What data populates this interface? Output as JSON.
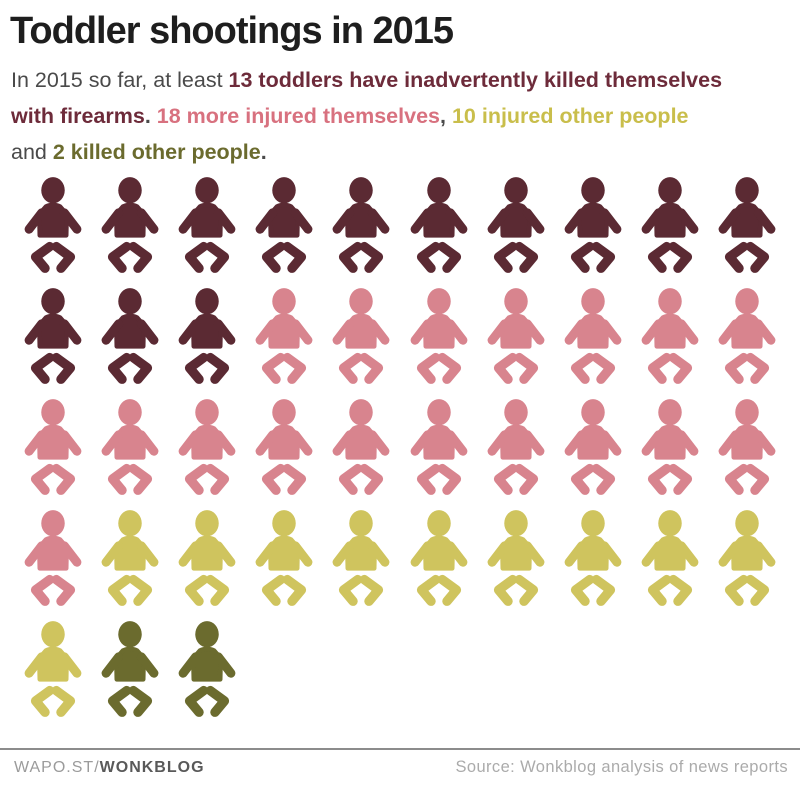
{
  "title": "Toddler shootings in 2015",
  "subtitle_lines": [
    [
      {
        "text": "In 2015 so far, at least ",
        "style": "plain"
      },
      {
        "text": "13 toddlers have inadvertently killed themselves",
        "style": "killed_self"
      }
    ],
    [
      {
        "text": "with firearms",
        "style": "killed_self"
      },
      {
        "text": ". ",
        "style": "punct"
      },
      {
        "text": "18 more injured themselves",
        "style": "injured_self"
      },
      {
        "text": ", ",
        "style": "punct"
      },
      {
        "text": "10 injured other people",
        "style": "injured_other"
      }
    ],
    [
      {
        "text": "and ",
        "style": "plain"
      },
      {
        "text": "2 killed other people",
        "style": "killed_other"
      },
      {
        "text": ".",
        "style": "punct"
      }
    ]
  ],
  "chart_data": {
    "type": "pictogram",
    "title": "Toddler shootings in 2015",
    "unit": "1 icon = 1 toddler",
    "icon": "baby",
    "grid_columns": 10,
    "total": 43,
    "categories": [
      "Killed themselves",
      "Injured themselves",
      "Injured other people",
      "Killed other people"
    ],
    "category_keys": [
      "killed-self",
      "injured-self",
      "injured-other",
      "killed-other"
    ],
    "values": [
      13,
      18,
      10,
      2
    ],
    "colors": [
      "#5b2a33",
      "#d8848e",
      "#cfc45e",
      "#6b6b2e"
    ]
  },
  "footer": {
    "brand_prefix": "WAPO.ST/",
    "brand_bold": "WONKBLOG",
    "source": "Source: Wonkblog analysis of news reports"
  },
  "colors": {
    "title_color": "#1e1e1e",
    "text_gray": "#4a4a4a",
    "killed_self_text": "#6d2b3a",
    "injured_self_text": "#d8717f",
    "injured_other_text": "#c9be4b",
    "killed_other_text": "#6b6b2e",
    "brand_prefix_color": "#9b9b9b",
    "brand_bold_color": "#595959",
    "source_color": "#ababab",
    "rule_color": "#8c8c8c"
  }
}
